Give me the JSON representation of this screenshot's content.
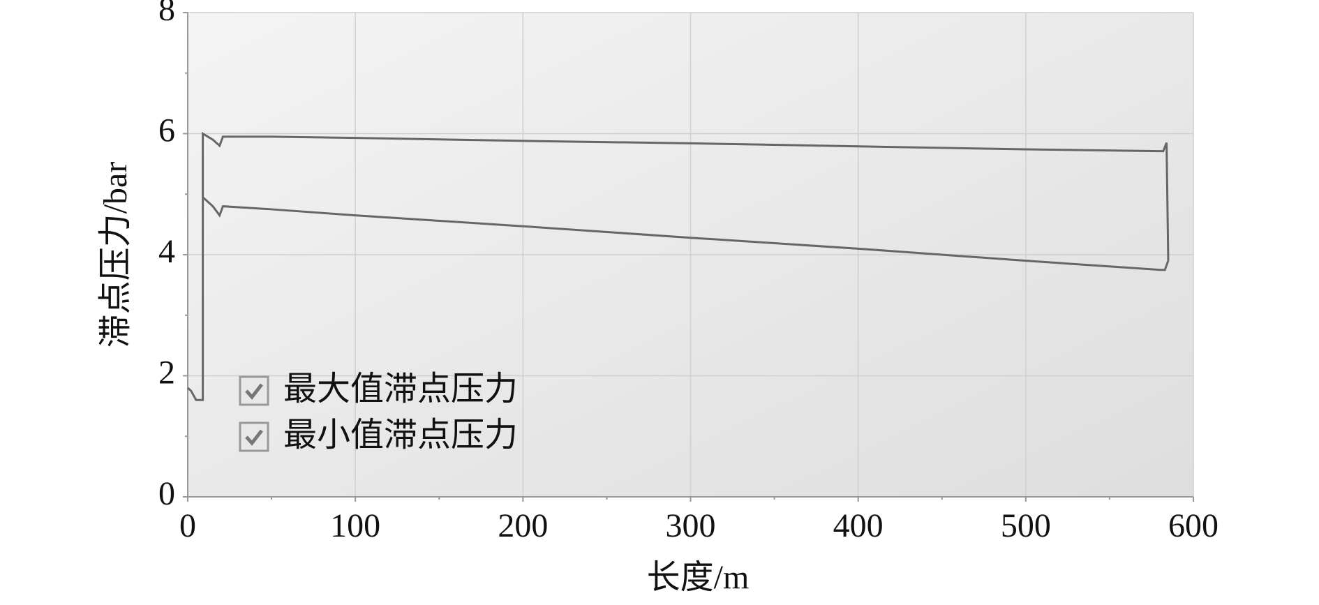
{
  "chart_data": {
    "type": "line",
    "xlabel": "长度/m",
    "ylabel": "滞点压力/bar",
    "xlim": [
      0,
      600
    ],
    "xticks": [
      0,
      100,
      200,
      300,
      400,
      500,
      600
    ],
    "xminorticks": [
      50,
      150,
      250,
      350,
      450,
      550
    ],
    "ylim": [
      0,
      8
    ],
    "yticks": [
      0,
      2,
      4,
      6,
      8
    ],
    "yminorticks": [
      1,
      3,
      5,
      7
    ],
    "grid": true,
    "legend": "lower left",
    "series": [
      {
        "name": "最大值滞点压力",
        "color": "#666666",
        "x": [
          0,
          2,
          5,
          9,
          9,
          15,
          19,
          21,
          50,
          100,
          200,
          300,
          400,
          500,
          580,
          582,
          584,
          585
        ],
        "values": [
          1.8,
          1.75,
          1.6,
          1.6,
          6.0,
          5.9,
          5.8,
          5.95,
          5.95,
          5.93,
          5.88,
          5.84,
          5.79,
          5.74,
          5.71,
          5.71,
          5.85,
          3.9
        ]
      },
      {
        "name": "最小值滞点压力",
        "color": "#666666",
        "x": [
          9,
          15,
          19,
          21,
          50,
          100,
          200,
          300,
          400,
          500,
          580,
          583,
          585
        ],
        "values": [
          4.95,
          4.8,
          4.65,
          4.8,
          4.75,
          4.65,
          4.47,
          4.28,
          4.1,
          3.9,
          3.75,
          3.75,
          3.9
        ]
      }
    ]
  }
}
